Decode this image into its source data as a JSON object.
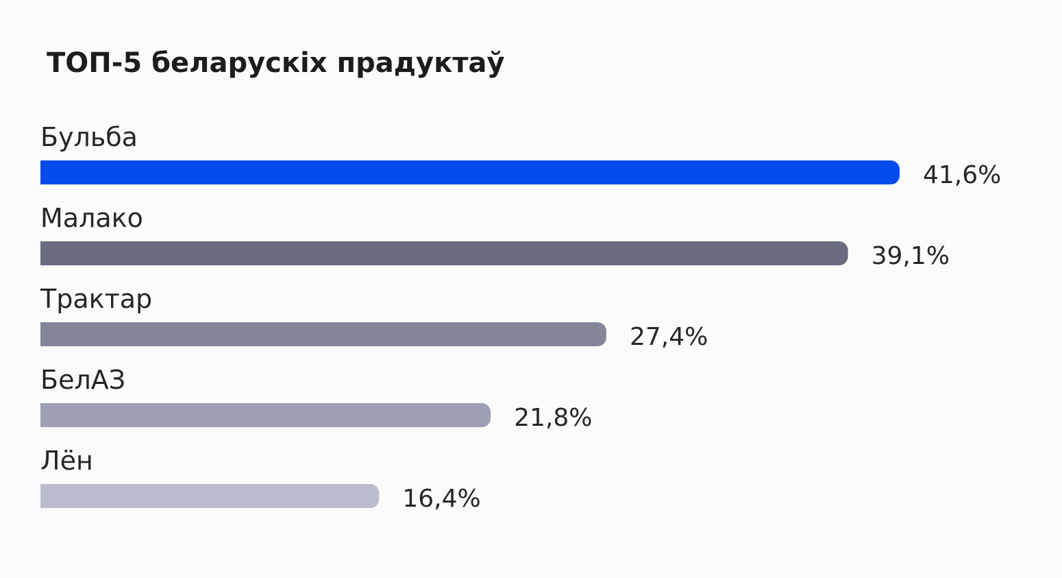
{
  "chart_data": {
    "type": "bar",
    "orientation": "horizontal",
    "title": "ТОП-5 беларускіх прадуктаў",
    "categories": [
      "Бульба",
      "Малако",
      "Трактар",
      "БелАЗ",
      "Лён"
    ],
    "values": [
      41.6,
      39.1,
      27.4,
      21.8,
      16.4
    ],
    "value_labels": [
      "41,6%",
      "39,1%",
      "27,4%",
      "21,8%",
      "16,4%"
    ],
    "unit": "%",
    "bar_colors": [
      "#034bea",
      "#6b6c80",
      "#838699",
      "#9d9fb4",
      "#bbbdce"
    ],
    "grid": false,
    "legend": false,
    "xlim": [
      0,
      41.6
    ]
  }
}
